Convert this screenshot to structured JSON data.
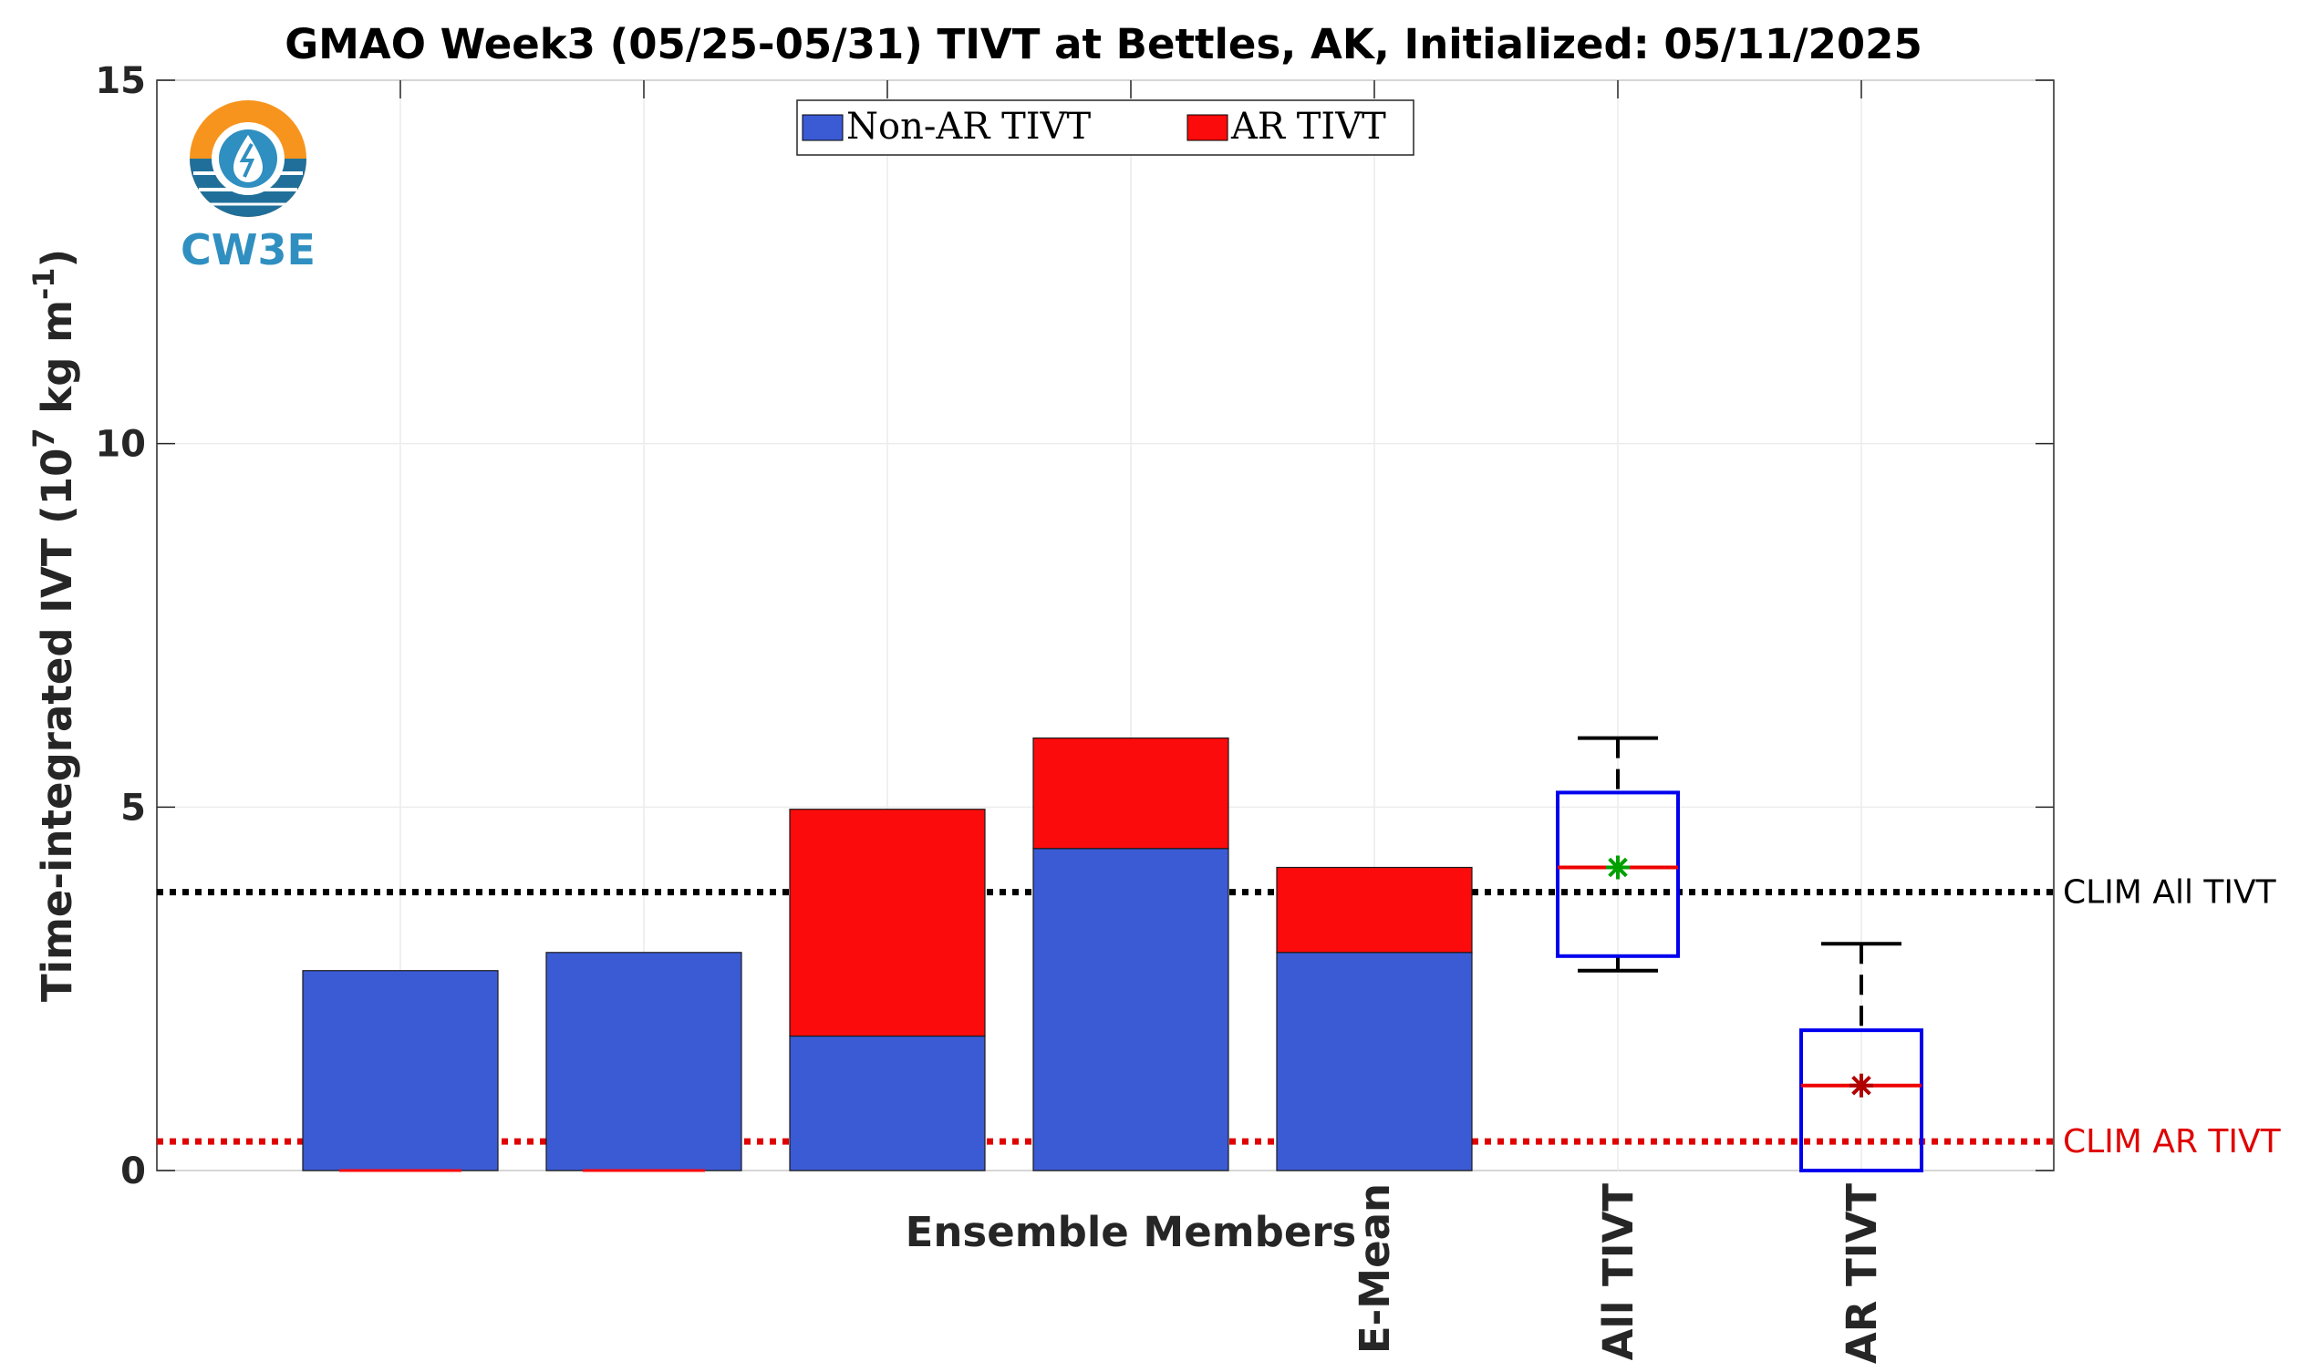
{
  "chart_data": {
    "type": "bar",
    "stacked": true,
    "title": "GMAO Week3 (05/25-05/31) TIVT at Bettles, AK, Initialized: 05/11/2025",
    "xlabel": "Ensemble Members",
    "ylabel": "Time-integrated IVT (10",
    "ylabel_exp": "7",
    "ylabel_unit": " kg m",
    "ylabel_unit_exp": "-1",
    "ylabel_close": ")",
    "ylim": [
      0,
      15
    ],
    "yticks": [
      "0",
      "5",
      "10",
      "15"
    ],
    "grid": true,
    "legend_position": "top-center",
    "categories": [
      "",
      "",
      "",
      "",
      "E-Mean"
    ],
    "series": [
      {
        "name": "Non-AR TIVT",
        "color": "#3b5bd5",
        "values": [
          2.75,
          3.0,
          1.85,
          4.43,
          3.0
        ]
      },
      {
        "name": "AR TIVT",
        "color": "#fb0b0b",
        "values": [
          0.0,
          0.0,
          3.12,
          1.52,
          1.17
        ]
      }
    ],
    "boxplots": [
      {
        "label": "All TIVT",
        "whisker_low": 2.75,
        "q1": 2.95,
        "median": 4.17,
        "q3": 5.2,
        "whisker_high": 5.95,
        "mean": 4.17,
        "mean_color": "#00a000"
      },
      {
        "label": "AR TIVT",
        "whisker_low": 0.0,
        "q1": 0.0,
        "median": 1.17,
        "q3": 1.93,
        "whisker_high": 3.12,
        "mean": 1.17,
        "mean_color": "#b00000"
      }
    ],
    "reference_lines": [
      {
        "label": "CLIM All TIVT",
        "value": 3.83,
        "color": "#000000"
      },
      {
        "label": "CLIM AR TIVT",
        "value": 0.4,
        "color": "#e00000"
      }
    ]
  },
  "logo": {
    "text": "CW3E"
  }
}
